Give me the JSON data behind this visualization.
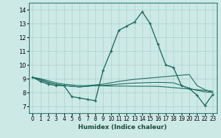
{
  "xlabel": "Humidex (Indice chaleur)",
  "xlim": [
    -0.5,
    23.5
  ],
  "ylim": [
    6.5,
    14.5
  ],
  "yticks": [
    7,
    8,
    9,
    10,
    11,
    12,
    13,
    14
  ],
  "xticks": [
    0,
    1,
    2,
    3,
    4,
    5,
    6,
    7,
    8,
    9,
    10,
    11,
    12,
    13,
    14,
    15,
    16,
    17,
    18,
    19,
    20,
    21,
    22,
    23
  ],
  "background_color": "#cce9e5",
  "grid_color": "#aad0cb",
  "line_color": "#1a6b5e",
  "lines": [
    {
      "y": [
        9.1,
        8.8,
        8.6,
        8.5,
        8.5,
        7.7,
        7.6,
        7.5,
        7.4,
        9.6,
        11.0,
        12.5,
        12.8,
        13.1,
        13.85,
        13.0,
        11.5,
        10.0,
        9.8,
        8.5,
        8.3,
        7.8,
        7.05,
        7.85
      ],
      "marker": true,
      "lw": 1.0
    },
    {
      "y": [
        9.1,
        9.0,
        8.85,
        8.7,
        8.6,
        8.55,
        8.5,
        8.5,
        8.55,
        8.6,
        8.7,
        8.8,
        8.88,
        8.95,
        9.0,
        9.05,
        9.1,
        9.15,
        9.2,
        9.25,
        9.3,
        8.5,
        8.2,
        8.0
      ],
      "marker": false,
      "lw": 0.8
    },
    {
      "y": [
        9.1,
        8.95,
        8.75,
        8.6,
        8.5,
        8.45,
        8.4,
        8.45,
        8.5,
        8.5,
        8.55,
        8.6,
        8.65,
        8.68,
        8.7,
        8.72,
        8.73,
        8.72,
        8.7,
        8.5,
        8.3,
        8.15,
        8.05,
        8.0
      ],
      "marker": false,
      "lw": 0.8
    },
    {
      "y": [
        9.1,
        8.9,
        8.7,
        8.6,
        8.5,
        8.45,
        8.4,
        8.45,
        8.5,
        8.48,
        8.47,
        8.46,
        8.46,
        8.45,
        8.45,
        8.45,
        8.44,
        8.4,
        8.35,
        8.3,
        8.25,
        8.2,
        8.15,
        8.1
      ],
      "marker": false,
      "lw": 0.8
    }
  ]
}
